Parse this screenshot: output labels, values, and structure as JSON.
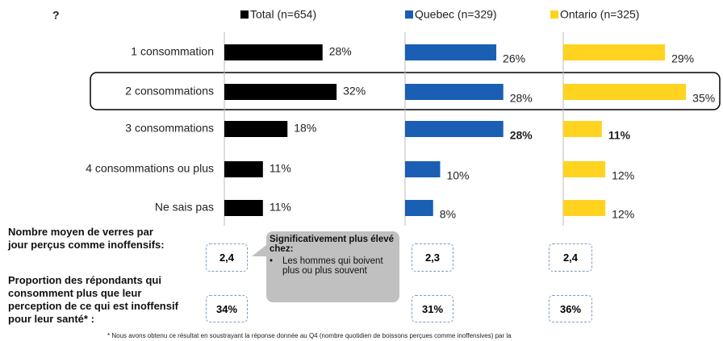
{
  "question_mark": "?",
  "chart_data": {
    "type": "bar",
    "orientation": "horizontal",
    "categories": [
      "1 consommation",
      "2 consommations",
      "3 consommations",
      "4 consommations ou plus",
      "Ne sais pas"
    ],
    "xlim": [
      0,
      46
    ],
    "series": [
      {
        "name": "Total (n=654)",
        "color": "#000000",
        "values": [
          28,
          32,
          18,
          11,
          11
        ],
        "value_labels": [
          "28%",
          "32%",
          "18%",
          "11%",
          "11%"
        ],
        "value_label_colors": [
          null,
          null,
          null,
          null,
          null
        ]
      },
      {
        "name": "Quebec (n=329)",
        "color": "#1a5fb4",
        "values": [
          26,
          28,
          28,
          10,
          8
        ],
        "value_labels": [
          "26%",
          "28%",
          "28%",
          "10%",
          "8%"
        ],
        "value_label_colors": [
          null,
          null,
          "#1fa050",
          null,
          null
        ]
      },
      {
        "name": "Ontario (n=325)",
        "color": "#ffd320",
        "values": [
          29,
          35,
          11,
          12,
          12
        ],
        "value_labels": [
          "29%",
          "35%",
          "11%",
          "12%",
          "12%"
        ],
        "value_label_colors": [
          null,
          null,
          "#e02020",
          null,
          null
        ]
      }
    ]
  },
  "summary": [
    {
      "label": "Nombre moyen de verres par jour perçus comme inoffensifs:",
      "values": [
        "2,4",
        "2,3",
        "2,4"
      ]
    },
    {
      "label": "Proportion des répondants qui consomment plus que leur perception de ce qui est inoffensif pour leur santé* :",
      "values": [
        "34%",
        "31%",
        "36%"
      ]
    }
  ],
  "callout": {
    "title": "Significativement plus élevé chez:",
    "bullet": "Les hommes qui boivent plus ou plus souvent"
  },
  "footnote": "* Nous avons obtenu ce résultat en soustrayant la réponse donnée au Q4 (nombre quotidien de boissons perçues comme inoffensives) par la"
}
